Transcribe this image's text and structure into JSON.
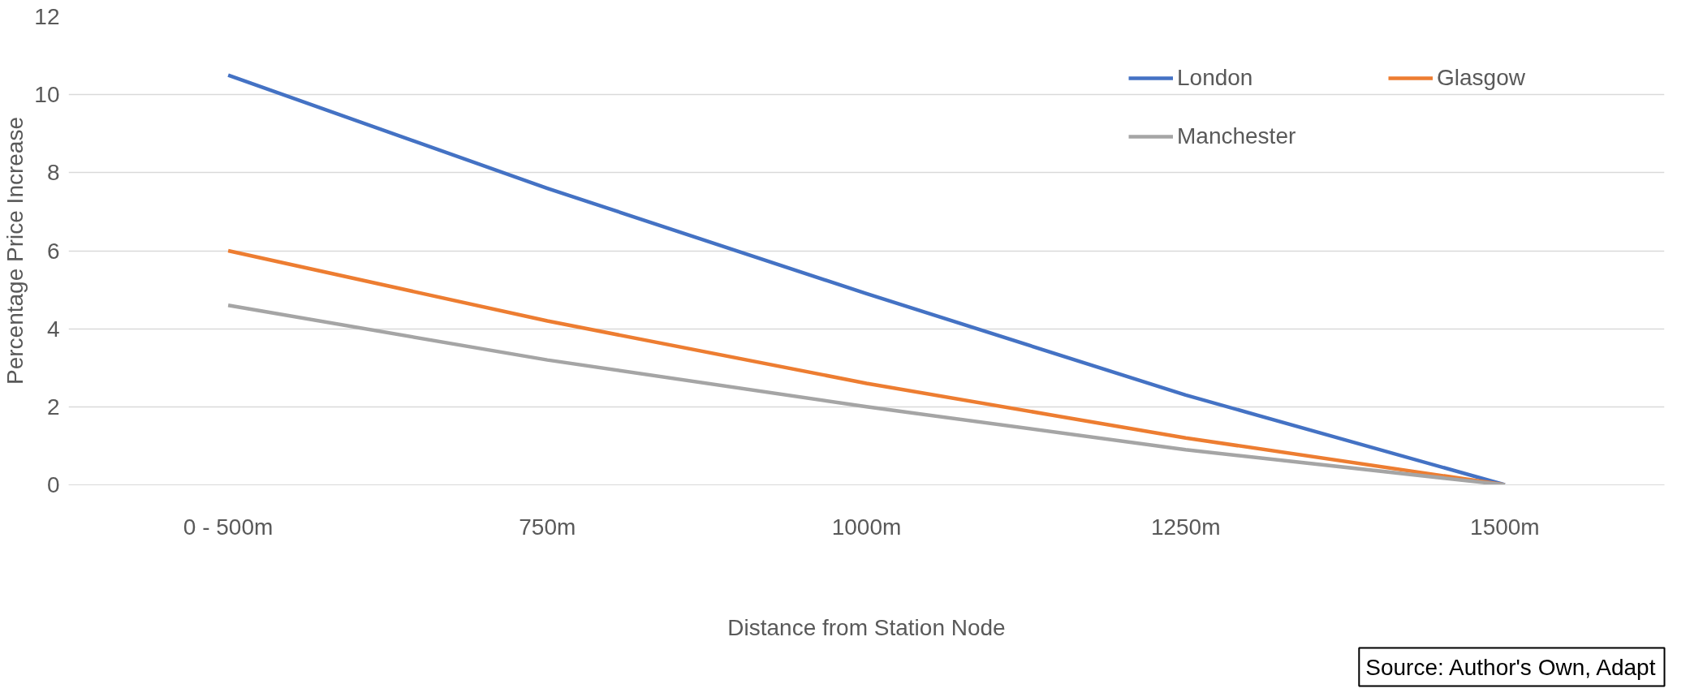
{
  "chart_data": {
    "type": "line",
    "xlabel": "Distance from Station Node",
    "ylabel": "Percentage Price Increase",
    "categories": [
      "0 - 500m",
      "750m",
      "1000m",
      "1250m",
      "1500m"
    ],
    "series": [
      {
        "name": "London",
        "color": "#4472c4",
        "values": [
          10.5,
          7.6,
          4.9,
          2.3,
          0
        ]
      },
      {
        "name": "Glasgow",
        "color": "#ed7d31",
        "values": [
          6.0,
          4.2,
          2.6,
          1.2,
          0
        ]
      },
      {
        "name": "Manchester",
        "color": "#a5a5a5",
        "values": [
          4.6,
          3.2,
          2.0,
          0.9,
          0
        ]
      }
    ],
    "ylim": [
      0,
      12
    ],
    "yticks": [
      0,
      2,
      4,
      6,
      8,
      10,
      12
    ],
    "grid": "y",
    "legend": "top right",
    "marker": "none",
    "line_style": "solid",
    "annotations": [
      "Source: Author's Own, Adapt"
    ]
  }
}
